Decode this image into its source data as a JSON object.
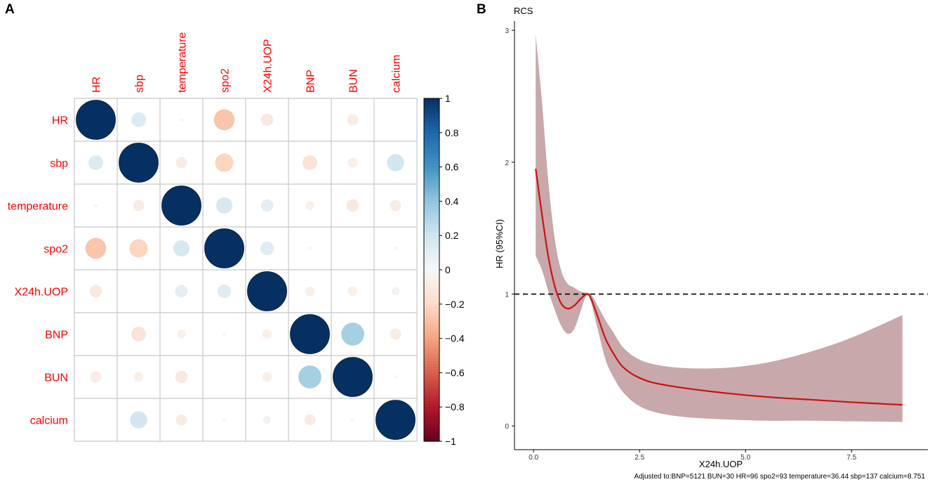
{
  "colors": {
    "label": "#ff0000",
    "grid": "#c8c8c8",
    "curve": "#cc1111",
    "band": "#b3868b",
    "strongPositive": "#0d3a6b",
    "strongNegative": "#67001f",
    "ref_line": "#000000"
  },
  "panels": {
    "a": "A",
    "b": "B"
  },
  "chart_data": [
    {
      "type": "heatmap",
      "subtype": "correlation-circles",
      "variables": [
        "HR",
        "sbp",
        "temperature",
        "spo2",
        "X24h.UOP",
        "BNP",
        "BUN",
        "calcium"
      ],
      "matrix": [
        [
          1.0,
          0.14,
          0.01,
          -0.28,
          -0.1,
          0.0,
          -0.08,
          0.0
        ],
        [
          0.14,
          1.0,
          -0.08,
          -0.22,
          0.0,
          -0.14,
          -0.06,
          0.19
        ],
        [
          0.01,
          -0.08,
          1.0,
          0.17,
          0.1,
          -0.05,
          -0.1,
          -0.08
        ],
        [
          -0.28,
          -0.22,
          0.17,
          1.0,
          0.12,
          0.01,
          0.0,
          0.01
        ],
        [
          -0.1,
          0.0,
          0.1,
          0.12,
          1.0,
          -0.06,
          -0.06,
          0.04
        ],
        [
          0.0,
          -0.14,
          -0.05,
          0.01,
          -0.06,
          1.0,
          0.34,
          -0.08
        ],
        [
          -0.08,
          -0.06,
          -0.1,
          0.0,
          -0.06,
          0.34,
          1.0,
          0.01
        ],
        [
          0.0,
          0.19,
          -0.08,
          0.01,
          0.04,
          -0.08,
          0.01,
          1.0
        ]
      ],
      "colorbar": {
        "range": [
          -1,
          1
        ],
        "ticks": [
          "1",
          "0.8",
          "0.6",
          "0.4",
          "0.2",
          "0",
          "−0.2",
          "−0.4",
          "−0.6",
          "−0.8",
          "−1"
        ],
        "tick_values": [
          1,
          0.8,
          0.6,
          0.4,
          0.2,
          0,
          -0.2,
          -0.4,
          -0.6,
          -0.8,
          -1
        ]
      }
    },
    {
      "type": "line",
      "title": "RCS",
      "xlabel": "X24h.UOP",
      "ylabel": "HR (95%CI)",
      "xlim": [
        -0.45,
        9.3
      ],
      "ylim": [
        -0.18,
        3.07
      ],
      "x_ticks": [
        0,
        2.5,
        5,
        7.5
      ],
      "x_tick_labels": [
        "0.0",
        "2.5",
        "5.0",
        "7.5"
      ],
      "y_ticks": [
        0,
        1,
        2,
        3
      ],
      "y_tick_labels": [
        "0",
        "1",
        "2",
        "3"
      ],
      "reference_line": 1,
      "series": [
        {
          "name": "HR",
          "x": [
            0.05,
            0.2,
            0.35,
            0.5,
            0.65,
            0.8,
            0.95,
            1.1,
            1.25,
            1.35,
            1.5,
            1.7,
            1.9,
            2.1,
            2.4,
            2.8,
            3.5,
            4.5,
            5.5,
            6.5,
            7.5,
            8.7
          ],
          "y": [
            1.95,
            1.6,
            1.28,
            1.06,
            0.93,
            0.89,
            0.91,
            0.96,
            1.0,
            0.97,
            0.84,
            0.66,
            0.54,
            0.45,
            0.38,
            0.33,
            0.29,
            0.25,
            0.22,
            0.2,
            0.18,
            0.16
          ],
          "lower": [
            1.29,
            1.18,
            1.02,
            0.88,
            0.76,
            0.7,
            0.73,
            0.86,
            0.99,
            0.94,
            0.75,
            0.5,
            0.36,
            0.26,
            0.17,
            0.11,
            0.07,
            0.05,
            0.04,
            0.04,
            0.035,
            0.03
          ],
          "upper": [
            2.97,
            2.45,
            1.85,
            1.42,
            1.18,
            1.08,
            1.05,
            1.02,
            1.01,
            1.0,
            0.92,
            0.8,
            0.7,
            0.6,
            0.52,
            0.47,
            0.44,
            0.44,
            0.48,
            0.56,
            0.67,
            0.84
          ]
        }
      ],
      "note": "Adjusted to:BNP=5121 BUN=30 HR=96 spo2=93 temperature=36.44 sbp=137 calcium=8.751"
    }
  ]
}
